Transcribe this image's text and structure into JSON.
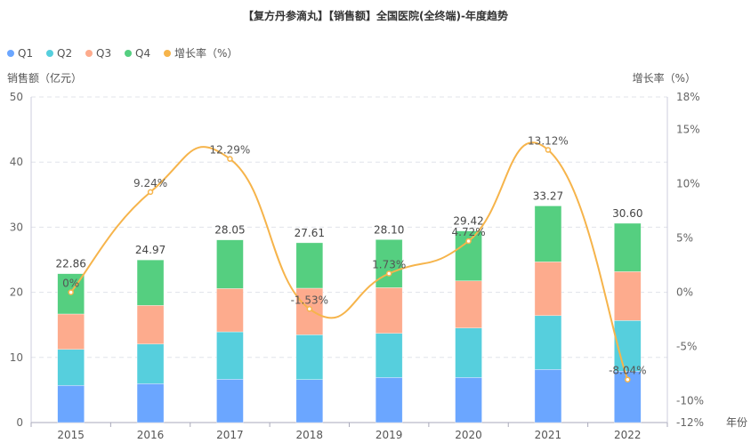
{
  "chart_data": {
    "type": "bar",
    "title": "【复方丹参滴丸】【销售额】全国医院(全终端)-年度趋势",
    "ylabel": "销售额（亿元）",
    "y2label": "增长率（%）",
    "xlabel": "年份",
    "ylim": [
      0,
      50
    ],
    "y2lim": [
      -12,
      18
    ],
    "yticks": [
      "0",
      "10",
      "20",
      "30",
      "40",
      "50"
    ],
    "y2ticks": [
      "-12%",
      "-10%",
      "-5%",
      "0%",
      "5%",
      "10%",
      "15%",
      "18%"
    ],
    "y2tick_values": [
      -12,
      -10,
      -5,
      0,
      5,
      10,
      15,
      18
    ],
    "categories": [
      "2015",
      "2016",
      "2017",
      "2018",
      "2019",
      "2020",
      "2021",
      "2022"
    ],
    "series": [
      {
        "name": "Q1",
        "color": "#6ba6ff",
        "values": [
          5.7,
          5.97,
          6.65,
          6.6,
          6.92,
          6.92,
          8.15,
          7.88
        ]
      },
      {
        "name": "Q2",
        "color": "#56cfdd",
        "values": [
          5.54,
          6.09,
          7.28,
          6.88,
          6.78,
          7.6,
          8.28,
          7.79
        ]
      },
      {
        "name": "Q3",
        "color": "#fdab8d",
        "values": [
          5.43,
          5.93,
          6.65,
          7.15,
          7.02,
          7.24,
          8.25,
          7.51
        ]
      },
      {
        "name": "Q4",
        "color": "#55cf80",
        "values": [
          6.19,
          6.98,
          7.47,
          6.98,
          7.38,
          7.66,
          8.59,
          7.42
        ]
      }
    ],
    "totals": [
      "22.86",
      "24.97",
      "28.05",
      "27.61",
      "28.10",
      "29.42",
      "33.27",
      "30.60"
    ],
    "growth": {
      "name": "增长率（%）",
      "color": "#f6b44b",
      "values": [
        0,
        9.24,
        12.29,
        -1.53,
        1.73,
        4.72,
        13.12,
        -8.04
      ],
      "labels": [
        "0%",
        "9.24%",
        "12.29%",
        "-1.53%",
        "1.73%",
        "4.72%",
        "13.12%",
        "-8.04%"
      ]
    },
    "legend_position": "top-left",
    "grid": true
  }
}
